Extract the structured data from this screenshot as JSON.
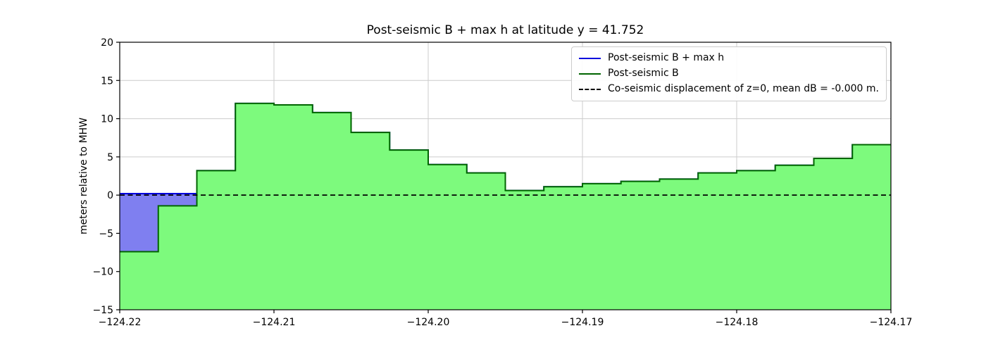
{
  "chart_data": {
    "type": "area",
    "title": "Post-seismic B + max h at latitude y = 41.752",
    "xlabel": "",
    "ylabel": "meters relative to MHW",
    "xlim": [
      -124.22,
      -124.17
    ],
    "ylim": [
      -15,
      20
    ],
    "xticks": [
      -124.22,
      -124.21,
      -124.2,
      -124.19,
      -124.18,
      -124.17
    ],
    "xtick_labels": [
      "−124.22",
      "−124.21",
      "−124.20",
      "−124.19",
      "−124.18",
      "−124.17"
    ],
    "yticks": [
      -15,
      -10,
      -5,
      0,
      5,
      10,
      15,
      20
    ],
    "ytick_labels": [
      "−15",
      "−10",
      "−5",
      "0",
      "5",
      "10",
      "15",
      "20"
    ],
    "grid": true,
    "grid_color": "#cccccc",
    "step_width_deg": 0.0025,
    "series": [
      {
        "name": "Post-seismic B + max h",
        "line_color": "#0000dd",
        "fill_color": "#7f7ff0",
        "values": [
          0.2,
          0.2,
          3.2,
          12.0,
          11.8,
          10.8,
          8.2,
          5.9,
          4.0,
          2.9,
          0.6,
          1.1,
          1.5,
          1.8,
          2.1,
          2.9,
          3.2,
          3.9,
          4.8,
          6.6
        ]
      },
      {
        "name": "Post-seismic B",
        "line_color": "#006400",
        "fill_color": "#7dfa7d",
        "values": [
          -7.4,
          -1.4,
          3.2,
          12.0,
          11.8,
          10.8,
          8.2,
          5.9,
          4.0,
          2.9,
          0.6,
          1.1,
          1.5,
          1.8,
          2.1,
          2.9,
          3.2,
          3.9,
          4.8,
          6.6
        ]
      }
    ],
    "reference_line": {
      "label": "Co-seismic displacement of z=0, mean dB = -0.000 m.",
      "y": 0,
      "color": "#000000",
      "style": "dashed"
    },
    "legend": [
      {
        "label": "Post-seismic B + max h",
        "color": "#0000dd",
        "style": "solid"
      },
      {
        "label": "Post-seismic B",
        "color": "#006400",
        "style": "solid"
      },
      {
        "label": "Co-seismic displacement of z=0, mean dB = -0.000 m.",
        "color": "#000000",
        "style": "dashed"
      }
    ]
  }
}
